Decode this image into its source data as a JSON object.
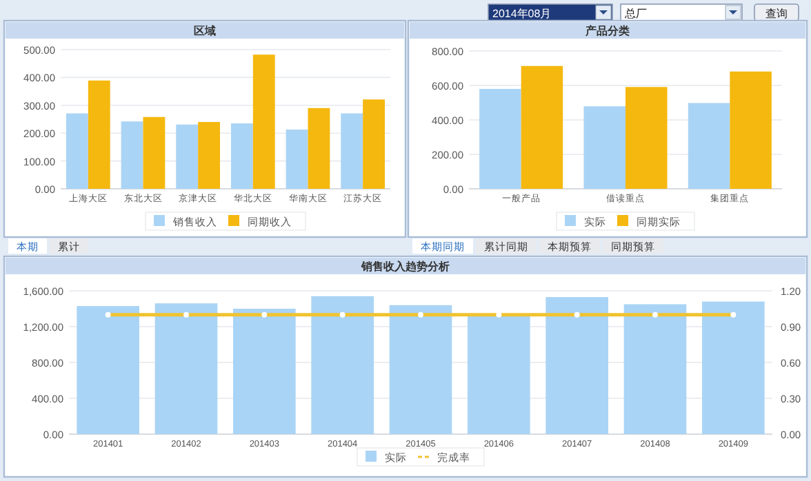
{
  "chart_data": [
    {
      "type": "other",
      "annotations": [
        "2014年08月",
        "总厂",
        "查询"
      ]
    },
    {
      "type": "bar",
      "title": "区域",
      "categories": [
        "上海大区",
        "东北大区",
        "京津大区",
        "华北大区",
        "华南大区",
        "江苏大区"
      ],
      "series": [
        {
          "name": "销售收入",
          "color": "#aad4f5",
          "values": [
            271,
            242,
            231,
            235,
            213,
            271
          ]
        },
        {
          "name": "同期收入",
          "color": "#f5b80f",
          "values": [
            389,
            258,
            240,
            482,
            290,
            321
          ]
        }
      ],
      "ylim": [
        0,
        500
      ],
      "yticks": [
        {
          "value": 0,
          "label": "0.00"
        },
        {
          "value": 100,
          "label": "100.00"
        },
        {
          "value": 200,
          "label": "200.00"
        },
        {
          "value": 300,
          "label": "300.00"
        },
        {
          "value": 400,
          "label": "400.00"
        },
        {
          "value": 500,
          "label": "500.00"
        }
      ],
      "grid": "y",
      "legend": "bottom",
      "annotations": [
        "本期",
        "累计"
      ]
    },
    {
      "type": "bar",
      "title": "产品分类",
      "categories": [
        "一般产品",
        "借读重点",
        "集团重点"
      ],
      "series": [
        {
          "name": "实际",
          "color": "#aad4f5",
          "values": [
            580,
            479,
            498
          ]
        },
        {
          "name": "同期实际",
          "color": "#f5b80f",
          "values": [
            713,
            591,
            681
          ]
        }
      ],
      "ylim": [
        0,
        800
      ],
      "yticks": [
        {
          "value": 0,
          "label": "0.00"
        },
        {
          "value": 200,
          "label": "200.00"
        },
        {
          "value": 400,
          "label": "400.00"
        },
        {
          "value": 600,
          "label": "600.00"
        },
        {
          "value": 800,
          "label": "800.00"
        }
      ],
      "grid": "y",
      "legend": "bottom",
      "annotations": [
        "本期同期",
        "累计同期",
        "本期预算",
        "同期预算"
      ]
    },
    {
      "type": "bar",
      "title": "销售收入趋势分析",
      "categories": [
        "201401",
        "201402",
        "201403",
        "201404",
        "201405",
        "201406",
        "201407",
        "201408",
        "201409"
      ],
      "series": [
        {
          "name": "实际",
          "color": "#aad4f5",
          "values": [
            1430,
            1460,
            1400,
            1540,
            1440,
            1320,
            1530,
            1450,
            1480
          ]
        },
        {
          "name": "完成率",
          "type": "line",
          "axis": "y2",
          "color": "#f0c330",
          "values": [
            1.0,
            1.0,
            1.0,
            1.0,
            1.0,
            1.0,
            1.0,
            1.0,
            1.0
          ]
        }
      ],
      "ylim": [
        0,
        1600
      ],
      "yticks": [
        {
          "value": 0,
          "label": "0.00"
        },
        {
          "value": 400,
          "label": "400.00"
        },
        {
          "value": 800,
          "label": "800.00"
        },
        {
          "value": 1200,
          "label": "1,200.00"
        },
        {
          "value": 1600,
          "label": "1,600.00"
        }
      ],
      "y2lim": [
        0,
        1.2
      ],
      "y2ticks": [
        {
          "value": 0,
          "label": "0.00"
        },
        {
          "value": 0.3,
          "label": "0.30"
        },
        {
          "value": 0.6,
          "label": "0.60"
        },
        {
          "value": 0.9,
          "label": "0.90"
        },
        {
          "value": 1.2,
          "label": "1.20"
        }
      ],
      "grid": "y",
      "legend": "bottom",
      "marker": "circle"
    }
  ]
}
